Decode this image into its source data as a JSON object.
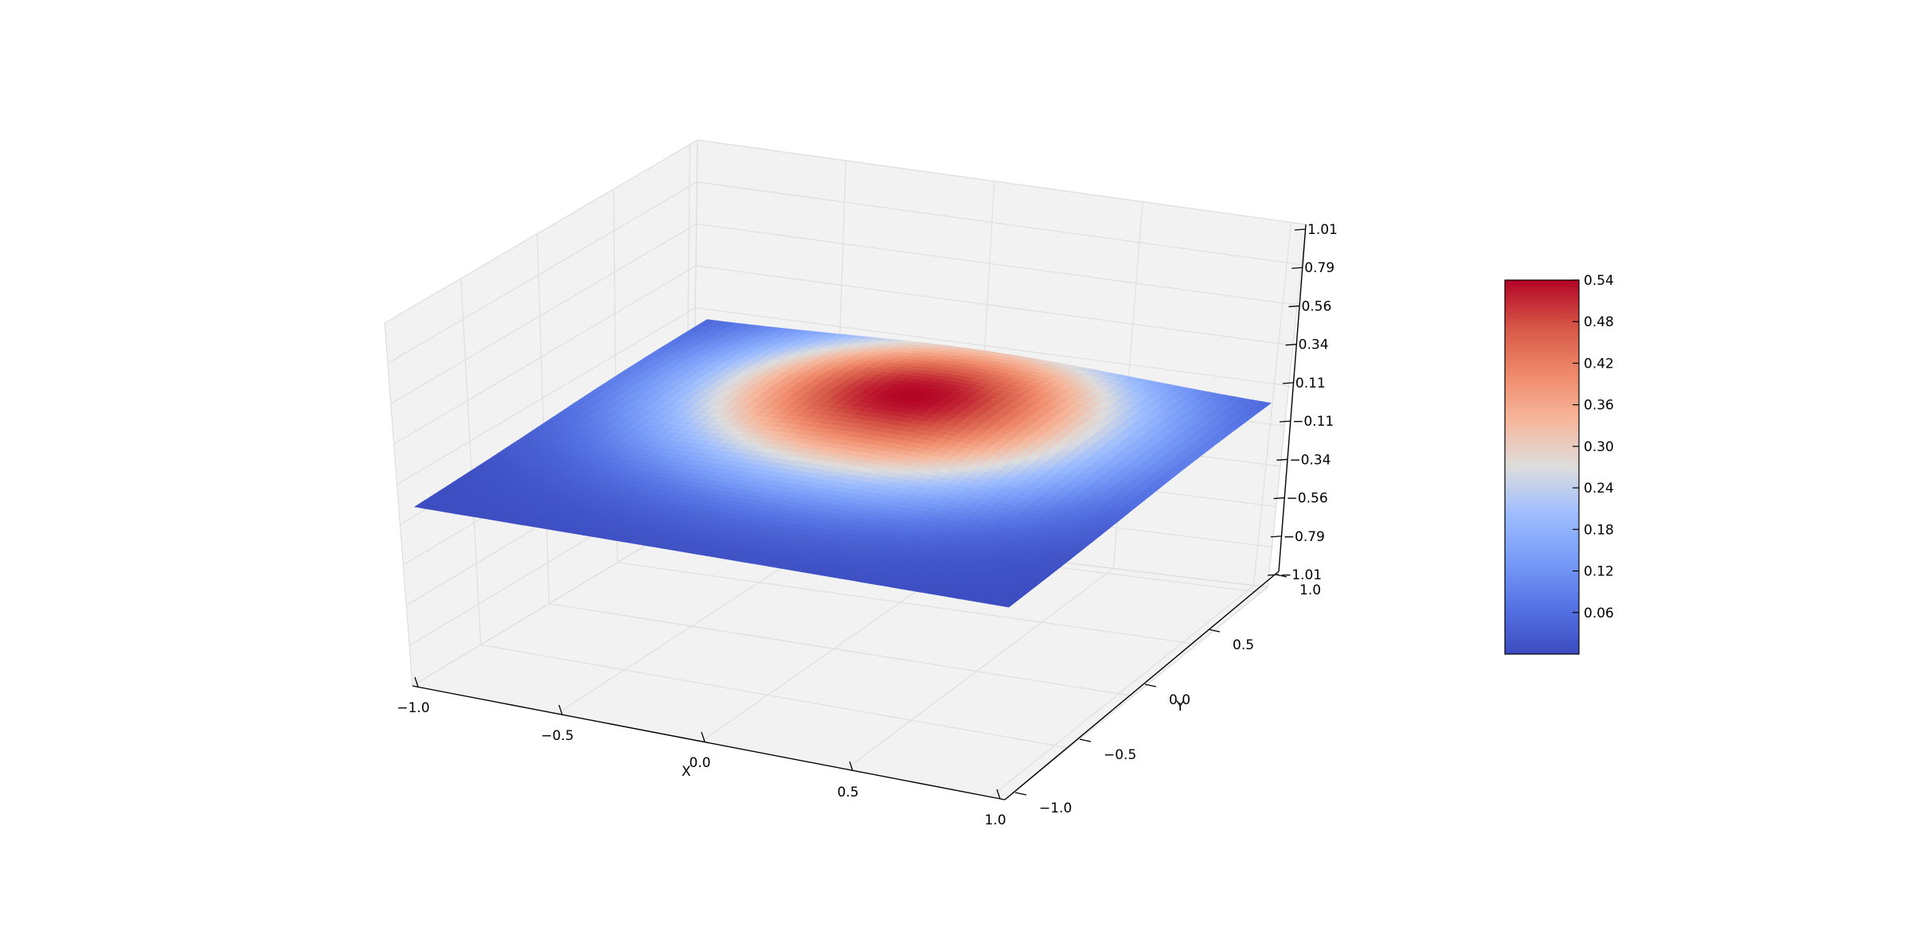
{
  "chart_data": {
    "type": "surface3d",
    "title": "",
    "xlabel": "X",
    "ylabel": "Y",
    "zlabel": "",
    "xlim": [
      -1.0,
      1.0
    ],
    "ylim": [
      -1.0,
      1.0
    ],
    "zlim": [
      -1.01,
      1.01
    ],
    "grid": true,
    "colormap": "coolwarm",
    "x_ticks": [
      "−1.0",
      "−0.5",
      "0.0",
      "0.5",
      "1.0"
    ],
    "y_ticks": [
      "−1.0",
      "−0.5",
      "0.0",
      "0.5",
      "1.0"
    ],
    "z_ticks": [
      "−1.01",
      "−0.79",
      "−0.56",
      "−0.34",
      "−0.11",
      "0.11",
      "0.34",
      "0.56",
      "0.79",
      "1.01"
    ],
    "surface": {
      "description_value": "smooth dome on a flat square plane",
      "peak_value": 0.54,
      "peak_x": 0.0,
      "peak_y": 0.45,
      "min_value": 0.0,
      "value_range": [
        0.0,
        0.54
      ]
    },
    "colorbar": {
      "min": 0.0,
      "max": 0.54,
      "ticks": [
        "0.06",
        "0.12",
        "0.18",
        "0.24",
        "0.30",
        "0.36",
        "0.42",
        "0.48",
        "0.54"
      ],
      "tick_values": [
        0.06,
        0.12,
        0.18,
        0.24,
        0.3,
        0.36,
        0.42,
        0.48,
        0.54
      ],
      "placement": "right"
    },
    "colors": {
      "low": "#3b4cc0",
      "mid": "#dddddd",
      "high": "#b40426",
      "pane": "#f2f2f2",
      "grid": "#e0e0e0"
    }
  }
}
